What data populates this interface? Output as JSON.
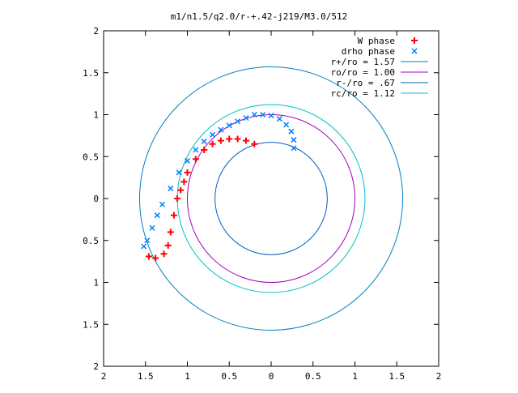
{
  "chart_data": {
    "type": "scatter",
    "title": "m1/n1.5/q2.0/r-+.42-j219/M3.0/512",
    "xlabel": "",
    "ylabel": "",
    "xlim": [
      -2,
      2
    ],
    "ylim": [
      -2,
      2
    ],
    "x_tick_values": [
      -2,
      -1.5,
      -1,
      -0.5,
      0,
      0.5,
      1,
      1.5,
      2
    ],
    "y_tick_values": [
      -2,
      -1.5,
      -1,
      -0.5,
      0,
      0.5,
      1,
      1.5,
      2
    ],
    "x_tick_labels": [
      "2",
      "1.5",
      "1",
      "0.5",
      "0",
      "0.5",
      "1",
      "1.5",
      "2"
    ],
    "y_tick_labels": [
      "2",
      "1.5",
      "1",
      "0.5",
      "0",
      "0.5",
      "1",
      "1.5",
      "2"
    ],
    "grid": false,
    "legend_position": "top-right",
    "series": [
      {
        "name": "W phase",
        "marker": "+",
        "color": "#ff0000",
        "points": [
          [
            -0.2,
            0.65
          ],
          [
            -0.3,
            0.69
          ],
          [
            -0.4,
            0.71
          ],
          [
            -0.5,
            0.71
          ],
          [
            -0.6,
            0.69
          ],
          [
            -0.7,
            0.65
          ],
          [
            -0.8,
            0.58
          ],
          [
            -0.9,
            0.47
          ],
          [
            -1.0,
            0.31
          ],
          [
            -1.04,
            0.2
          ],
          [
            -1.08,
            0.1
          ],
          [
            -1.12,
            0.0
          ],
          [
            -1.16,
            -0.2
          ],
          [
            -1.2,
            -0.4
          ],
          [
            -1.23,
            -0.56
          ],
          [
            -1.28,
            -0.66
          ],
          [
            -1.38,
            -0.71
          ],
          [
            -1.46,
            -0.69
          ]
        ]
      },
      {
        "name": "drho phase",
        "marker": "x",
        "color": "#0080ff",
        "points": [
          [
            0.27,
            0.6
          ],
          [
            0.27,
            0.7
          ],
          [
            0.24,
            0.8
          ],
          [
            0.18,
            0.88
          ],
          [
            0.1,
            0.95
          ],
          [
            0.0,
            0.99
          ],
          [
            -0.1,
            1.0
          ],
          [
            -0.2,
            1.0
          ],
          [
            -0.3,
            0.96
          ],
          [
            -0.4,
            0.92
          ],
          [
            -0.5,
            0.87
          ],
          [
            -0.6,
            0.82
          ],
          [
            -0.7,
            0.76
          ],
          [
            -0.8,
            0.68
          ],
          [
            -0.9,
            0.58
          ],
          [
            -1.0,
            0.45
          ],
          [
            -1.1,
            0.31
          ],
          [
            -1.2,
            0.12
          ],
          [
            -1.3,
            -0.07
          ],
          [
            -1.36,
            -0.2
          ],
          [
            -1.42,
            -0.35
          ],
          [
            -1.48,
            -0.5
          ],
          [
            -1.52,
            -0.57
          ]
        ]
      },
      {
        "name": "r+/ro = 1.57",
        "type": "circle",
        "radius": 1.57,
        "color": "#0080c0"
      },
      {
        "name": "ro/ro = 1.00",
        "type": "circle",
        "radius": 1.0,
        "color": "#a000c0"
      },
      {
        "name": "r-/ro = .67",
        "type": "circle",
        "radius": 0.67,
        "color": "#0060c0"
      },
      {
        "name": "rc/ro = 1.12",
        "type": "circle",
        "radius": 1.12,
        "color": "#00c0c0"
      }
    ]
  }
}
